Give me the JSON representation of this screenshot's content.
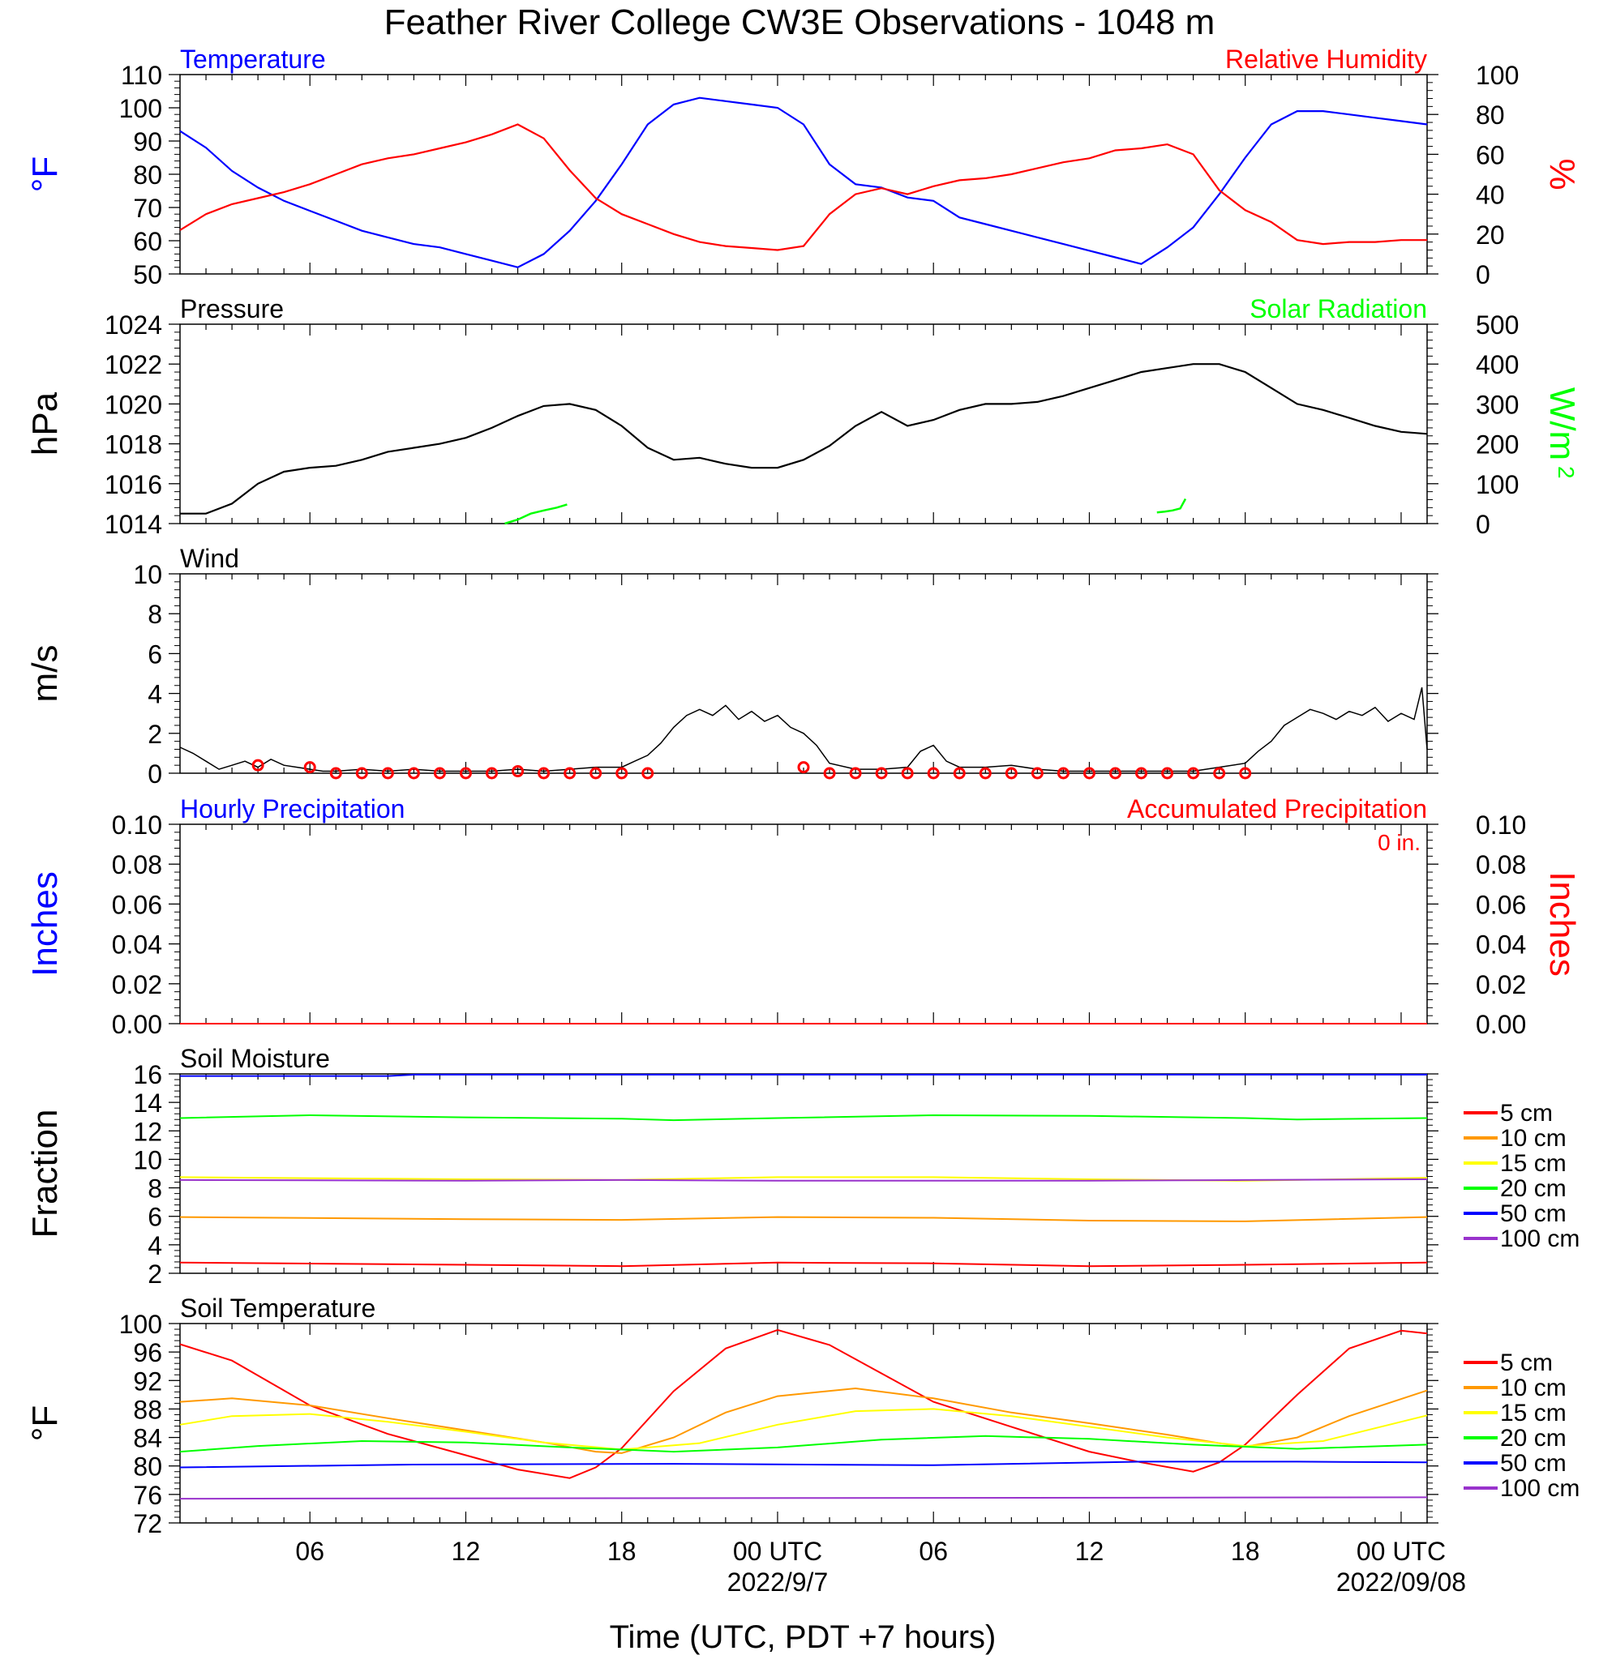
{
  "title": "Feather River College CW3E Observations - 1048 m",
  "xaxis": {
    "title": "Time (UTC, PDT +7 hours)",
    "tick_labels": [
      "06",
      "12",
      "18",
      "00 UTC",
      "06",
      "12",
      "18",
      "00 UTC"
    ],
    "tick_hours": [
      6,
      12,
      18,
      24,
      30,
      36,
      42,
      48
    ],
    "date_labels": [
      "2022/9/7",
      "2022/09/08"
    ],
    "date_hours": [
      24,
      48
    ],
    "range_hours": [
      1,
      49
    ]
  },
  "colors": {
    "temperature": "#0000ff",
    "humidity": "#ff0000",
    "pressure": "#000000",
    "solar": "#00ff00",
    "wind": "#000000",
    "wind_barbs": "#ff0000",
    "soil_depths": [
      "#ff0000",
      "#ff9900",
      "#ffff00",
      "#00ff00",
      "#0000ff",
      "#9933cc"
    ]
  },
  "chart_data": [
    {
      "type": "line",
      "name": "temperature-humidity",
      "left_label": "Temperature",
      "right_label": "Relative Humidity",
      "left_unit": "°F",
      "right_unit": "%",
      "left_ticks": [
        "50",
        "60",
        "70",
        "80",
        "90",
        "100",
        "110"
      ],
      "right_ticks": [
        "0",
        "20",
        "40",
        "60",
        "80",
        "100"
      ],
      "ylim_left": [
        50,
        110
      ],
      "ylim_right": [
        0,
        100
      ],
      "series": [
        {
          "name": "Temperature",
          "axis": "left",
          "x": [
            1,
            2,
            3,
            4,
            5,
            6,
            7,
            8,
            9,
            10,
            11,
            12,
            13,
            14,
            15,
            16,
            17,
            18,
            19,
            20,
            21,
            22,
            23,
            24,
            25,
            26,
            27,
            28,
            29,
            30,
            31,
            32,
            33,
            34,
            35,
            36,
            37,
            38,
            39,
            40,
            41,
            42,
            43,
            44,
            45,
            46,
            47,
            48,
            49
          ],
          "y": [
            93,
            88,
            81,
            76,
            72,
            69,
            66,
            63,
            61,
            59,
            58,
            56,
            54,
            52,
            56,
            63,
            72,
            83,
            95,
            101,
            103,
            102,
            101,
            100,
            95,
            83,
            77,
            76,
            73,
            72,
            67,
            65,
            63,
            61,
            59,
            57,
            55,
            53,
            58,
            64,
            74,
            85,
            95,
            99,
            99,
            98,
            97,
            96,
            95
          ]
        },
        {
          "name": "Relative Humidity",
          "axis": "right",
          "x": [
            1,
            2,
            3,
            4,
            5,
            6,
            7,
            8,
            9,
            10,
            11,
            12,
            13,
            14,
            15,
            16,
            17,
            18,
            19,
            20,
            21,
            22,
            23,
            24,
            25,
            26,
            27,
            28,
            29,
            30,
            31,
            32,
            33,
            34,
            35,
            36,
            37,
            38,
            39,
            40,
            41,
            42,
            43,
            44,
            45,
            46,
            47,
            48,
            49
          ],
          "y": [
            22,
            30,
            35,
            38,
            41,
            45,
            50,
            55,
            58,
            60,
            63,
            66,
            70,
            75,
            68,
            52,
            38,
            30,
            25,
            20,
            16,
            14,
            13,
            12,
            14,
            30,
            40,
            43,
            40,
            44,
            47,
            48,
            50,
            53,
            56,
            58,
            62,
            63,
            65,
            60,
            42,
            32,
            26,
            17,
            15,
            16,
            16,
            17,
            17
          ]
        }
      ]
    },
    {
      "type": "line",
      "name": "pressure-solar",
      "left_label": "Pressure",
      "right_label": "Solar Radiation",
      "left_unit": "hPa",
      "right_unit": "W/m",
      "right_unit_sup": "2",
      "left_ticks": [
        "1014",
        "1016",
        "1018",
        "1020",
        "1022",
        "1024"
      ],
      "right_ticks": [
        "0",
        "100",
        "200",
        "300",
        "400",
        "500"
      ],
      "ylim_left": [
        1014,
        1024
      ],
      "ylim_right": [
        0,
        500
      ],
      "series": [
        {
          "name": "Pressure",
          "axis": "left",
          "x": [
            1,
            2,
            3,
            4,
            5,
            6,
            7,
            8,
            9,
            10,
            11,
            12,
            13,
            14,
            15,
            16,
            17,
            18,
            19,
            20,
            21,
            22,
            23,
            24,
            25,
            26,
            27,
            28,
            29,
            30,
            31,
            32,
            33,
            34,
            35,
            36,
            37,
            38,
            39,
            40,
            41,
            42,
            43,
            44,
            45,
            46,
            47,
            48,
            49
          ],
          "y": [
            1014.5,
            1014.5,
            1015.0,
            1016.0,
            1016.6,
            1016.8,
            1016.9,
            1017.2,
            1017.6,
            1017.8,
            1018.0,
            1018.3,
            1018.8,
            1019.4,
            1019.9,
            1020.0,
            1019.7,
            1018.9,
            1017.8,
            1017.2,
            1017.3,
            1017.0,
            1016.8,
            1016.8,
            1017.2,
            1017.9,
            1018.9,
            1019.6,
            1018.9,
            1019.2,
            1019.7,
            1020.0,
            1020.0,
            1020.1,
            1020.4,
            1020.8,
            1021.2,
            1021.6,
            1021.8,
            1022.0,
            1022.0,
            1021.6,
            1020.8,
            1020.0,
            1019.7,
            1019.3,
            1018.9,
            1018.6,
            1018.5
          ]
        },
        {
          "name": "Solar Radiation",
          "axis": "right",
          "segments": [
            {
              "x": [
                13.5,
                14,
                14.5,
                15,
                15.5,
                15.9
              ],
              "y": [
                0,
                10,
                25,
                33,
                40,
                48
              ]
            },
            {
              "x": [
                38.6,
                38.9,
                39.2,
                39.5,
                39.7
              ],
              "y": [
                28,
                30,
                33,
                38,
                62
              ]
            }
          ]
        }
      ]
    },
    {
      "type": "line",
      "name": "wind",
      "label": "Wind",
      "unit": "m/s",
      "ticks": [
        "0",
        "2",
        "4",
        "6",
        "8",
        "10"
      ],
      "ylim": [
        0,
        10
      ],
      "series": [
        {
          "name": "Wind",
          "x": [
            1,
            1.5,
            2,
            2.5,
            3,
            3.5,
            4,
            4.5,
            5,
            5.5,
            6,
            6.5,
            7,
            8,
            9,
            10,
            11,
            12,
            13,
            14,
            15,
            16,
            17,
            18,
            18.5,
            19,
            19.5,
            20,
            20.5,
            21,
            21.5,
            22,
            22.5,
            23,
            23.5,
            24,
            24.5,
            25,
            25.5,
            26,
            27,
            28,
            29,
            29.5,
            30,
            30.5,
            31,
            32,
            33,
            34,
            35,
            36,
            37,
            38,
            39,
            40,
            41,
            42,
            42.5,
            43,
            43.5,
            44,
            44.5,
            45,
            45.5,
            46,
            46.5,
            47,
            47.5,
            48,
            48.5,
            48.8,
            49
          ],
          "y": [
            1.3,
            1.0,
            0.6,
            0.2,
            0.4,
            0.6,
            0.3,
            0.7,
            0.4,
            0.3,
            0.2,
            0.1,
            0.1,
            0.2,
            0.1,
            0.2,
            0.1,
            0.1,
            0.1,
            0.2,
            0.1,
            0.2,
            0.3,
            0.3,
            0.6,
            0.9,
            1.5,
            2.3,
            2.9,
            3.2,
            2.9,
            3.4,
            2.7,
            3.1,
            2.6,
            2.9,
            2.3,
            2.0,
            1.4,
            0.5,
            0.2,
            0.2,
            0.3,
            1.1,
            1.4,
            0.6,
            0.3,
            0.3,
            0.4,
            0.2,
            0.1,
            0.1,
            0.1,
            0.1,
            0.1,
            0.1,
            0.3,
            0.5,
            1.1,
            1.6,
            2.4,
            2.8,
            3.2,
            3.0,
            2.7,
            3.1,
            2.9,
            3.3,
            2.6,
            3.0,
            2.7,
            4.3,
            1.2
          ]
        },
        {
          "name": "Wind Barbs",
          "x": [
            4,
            6,
            7,
            8,
            9,
            10,
            11,
            12,
            13,
            14,
            15,
            16,
            17,
            18,
            19,
            25,
            26,
            27,
            28,
            29,
            30,
            31,
            32,
            33,
            34,
            35,
            36,
            37,
            38,
            39,
            40,
            41,
            42
          ],
          "y": [
            0.4,
            0.3,
            0,
            0,
            0,
            0,
            0,
            0,
            0,
            0.1,
            0,
            0,
            0,
            0,
            0,
            0.3,
            0,
            0,
            0,
            0,
            0,
            0,
            0,
            0,
            0,
            0,
            0,
            0,
            0,
            0,
            0,
            0,
            0
          ]
        }
      ]
    },
    {
      "type": "line",
      "name": "precipitation",
      "left_label": "Hourly Precipitation",
      "right_label": "Accumulated Precipitation",
      "accumulated_text": "0 in.",
      "left_unit": "Inches",
      "right_unit": "Inches",
      "left_ticks": [
        "0.00",
        "0.02",
        "0.04",
        "0.06",
        "0.08",
        "0.10"
      ],
      "right_ticks": [
        "0.00",
        "0.02",
        "0.04",
        "0.06",
        "0.08",
        "0.10"
      ],
      "ylim": [
        0,
        0.1
      ],
      "series": [
        {
          "name": "Hourly Precipitation",
          "x": [
            1,
            49
          ],
          "y": [
            0,
            0
          ]
        },
        {
          "name": "Accumulated Precipitation",
          "x": [
            1,
            49
          ],
          "y": [
            0,
            0
          ]
        }
      ]
    },
    {
      "type": "line",
      "name": "soil-moisture",
      "label": "Soil Moisture",
      "unit": "Fraction",
      "ticks": [
        "2",
        "4",
        "6",
        "8",
        "10",
        "12",
        "14",
        "16"
      ],
      "ylim": [
        2,
        16
      ],
      "legend": [
        "5 cm",
        "10 cm",
        "15 cm",
        "20 cm",
        "50 cm",
        "100 cm"
      ],
      "series": [
        {
          "name": "5 cm",
          "x": [
            1,
            12,
            18,
            24,
            30,
            36,
            42,
            49
          ],
          "y": [
            2.75,
            2.6,
            2.5,
            2.75,
            2.7,
            2.5,
            2.6,
            2.75
          ]
        },
        {
          "name": "10 cm",
          "x": [
            1,
            12,
            18,
            24,
            30,
            36,
            42,
            49
          ],
          "y": [
            5.95,
            5.8,
            5.75,
            5.95,
            5.9,
            5.7,
            5.65,
            5.95
          ]
        },
        {
          "name": "15 cm",
          "x": [
            1,
            12,
            18,
            24,
            30,
            36,
            42,
            49
          ],
          "y": [
            8.75,
            8.6,
            8.55,
            8.75,
            8.75,
            8.6,
            8.5,
            8.7
          ]
        },
        {
          "name": "20 cm",
          "x": [
            1,
            6,
            12,
            18,
            20,
            24,
            30,
            36,
            42,
            44,
            49
          ],
          "y": [
            12.9,
            13.1,
            12.95,
            12.85,
            12.75,
            12.9,
            13.1,
            13.05,
            12.9,
            12.8,
            12.9
          ]
        },
        {
          "name": "50 cm",
          "x": [
            1,
            9,
            10,
            49
          ],
          "y": [
            15.85,
            15.85,
            15.95,
            15.95
          ]
        },
        {
          "name": "100 cm",
          "x": [
            1,
            12,
            18,
            24,
            30,
            36,
            42,
            49
          ],
          "y": [
            8.55,
            8.5,
            8.55,
            8.5,
            8.5,
            8.5,
            8.55,
            8.6
          ]
        }
      ]
    },
    {
      "type": "line",
      "name": "soil-temperature",
      "label": "Soil Temperature",
      "unit": "°F",
      "ticks": [
        "72",
        "76",
        "80",
        "84",
        "88",
        "92",
        "96",
        "100"
      ],
      "ylim": [
        72,
        100
      ],
      "legend": [
        "5 cm",
        "10 cm",
        "15 cm",
        "20 cm",
        "50 cm",
        "100 cm"
      ],
      "series": [
        {
          "name": "5 cm",
          "x": [
            1,
            3,
            6,
            9,
            12,
            14,
            16,
            17,
            18,
            20,
            22,
            24,
            26,
            28,
            30,
            33,
            36,
            38,
            40,
            41,
            42,
            44,
            46,
            48,
            49
          ],
          "y": [
            97.1,
            94.8,
            88.5,
            84.5,
            81.5,
            79.5,
            78.3,
            79.8,
            82.5,
            90.5,
            96.5,
            99.1,
            97.0,
            93.0,
            89.0,
            85.5,
            82.0,
            80.5,
            79.2,
            80.5,
            83.0,
            90.0,
            96.5,
            99.0,
            98.6
          ]
        },
        {
          "name": "10 cm",
          "x": [
            1,
            3,
            6,
            9,
            12,
            15,
            17,
            18,
            20,
            22,
            24,
            27,
            30,
            33,
            36,
            39,
            41,
            42,
            44,
            46,
            49
          ],
          "y": [
            89.0,
            89.5,
            88.5,
            86.7,
            85.0,
            83.3,
            82.0,
            81.8,
            84.0,
            87.5,
            89.8,
            90.9,
            89.5,
            87.5,
            86.0,
            84.4,
            83.2,
            82.7,
            84.0,
            87.0,
            90.6
          ]
        },
        {
          "name": "15 cm",
          "x": [
            1,
            3,
            6,
            9,
            12,
            15,
            18,
            21,
            24,
            27,
            30,
            33,
            36,
            39,
            42,
            45,
            49
          ],
          "y": [
            85.8,
            87.0,
            87.3,
            86.2,
            84.8,
            83.3,
            82.3,
            83.2,
            85.8,
            87.7,
            88.0,
            87.0,
            85.5,
            84.0,
            82.8,
            83.5,
            87.1
          ]
        },
        {
          "name": "20 cm",
          "x": [
            1,
            4,
            8,
            12,
            16,
            20,
            24,
            28,
            32,
            36,
            40,
            44,
            49
          ],
          "y": [
            82.0,
            82.8,
            83.5,
            83.3,
            82.6,
            82.0,
            82.6,
            83.7,
            84.2,
            83.8,
            83.0,
            82.4,
            83.0
          ]
        },
        {
          "name": "50 cm",
          "x": [
            1,
            10,
            20,
            30,
            38,
            44,
            49
          ],
          "y": [
            79.8,
            80.2,
            80.3,
            80.1,
            80.6,
            80.6,
            80.5
          ]
        },
        {
          "name": "100 cm",
          "x": [
            1,
            25,
            49
          ],
          "y": [
            75.4,
            75.5,
            75.6
          ]
        }
      ]
    }
  ]
}
